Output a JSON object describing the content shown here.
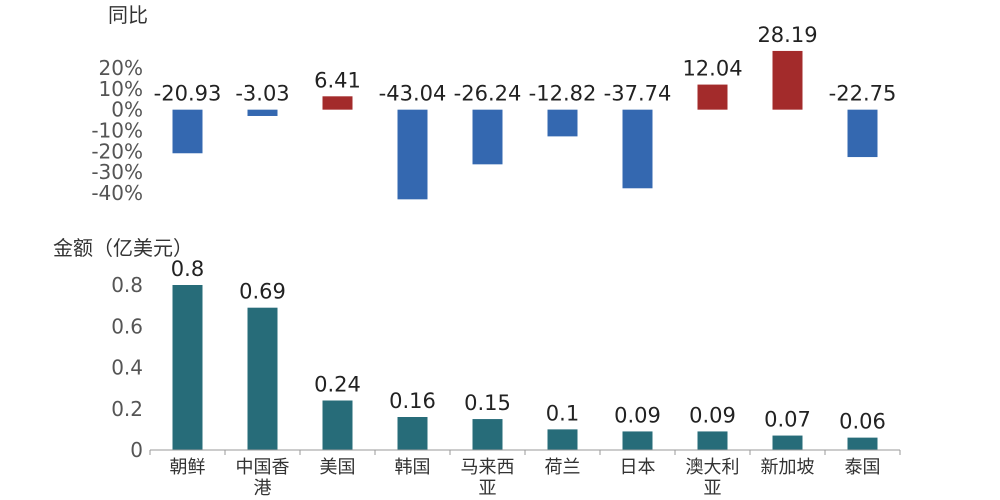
{
  "chart_data": [
    {
      "type": "bar",
      "title": "同比",
      "categories": [
        "朝鲜",
        "中国香港",
        "美国",
        "韩国",
        "马来西亚",
        "荷兰",
        "日本",
        "澳大利亚",
        "新加坡",
        "泰国"
      ],
      "values": [
        -20.93,
        -3.03,
        6.41,
        -43.04,
        -26.24,
        -12.82,
        -37.74,
        12.04,
        28.19,
        -22.75
      ],
      "data_labels": [
        "-20.93",
        "-3.03",
        "6.41",
        "-43.04",
        "-26.24",
        "-12.82",
        "-37.74",
        "12.04",
        "28.19",
        "-22.75"
      ],
      "yticks": [
        "20%",
        "10%",
        "0%",
        "-10%",
        "-20%",
        "-30%",
        "-40%"
      ],
      "ylim": [
        -40,
        20
      ],
      "colors": {
        "positive": "#A32B2B",
        "negative": "#3468B0"
      },
      "grid": false
    },
    {
      "type": "bar",
      "title": "金额（亿美元）",
      "categories": [
        "朝鲜",
        "中国香港",
        "美国",
        "韩国",
        "马来西亚",
        "荷兰",
        "日本",
        "澳大利亚",
        "新加坡",
        "泰国"
      ],
      "category_lines": [
        [
          "朝鲜"
        ],
        [
          "中国香",
          "港"
        ],
        [
          "美国"
        ],
        [
          "韩国"
        ],
        [
          "马来西",
          "亚"
        ],
        [
          "荷兰"
        ],
        [
          "日本"
        ],
        [
          "澳大利",
          "亚"
        ],
        [
          "新加坡"
        ],
        [
          "泰国"
        ]
      ],
      "values": [
        0.8,
        0.69,
        0.24,
        0.16,
        0.15,
        0.1,
        0.09,
        0.09,
        0.07,
        0.06
      ],
      "data_labels": [
        "0.8",
        "0.69",
        "0.24",
        "0.16",
        "0.15",
        "0.1",
        "0.09",
        "0.09",
        "0.07",
        "0.06"
      ],
      "yticks": [
        "0.8",
        "0.6",
        "0.4",
        "0.2",
        "0"
      ],
      "ylim": [
        0,
        0.8
      ],
      "colors": {
        "bar": "#276C79"
      },
      "grid": false
    }
  ]
}
